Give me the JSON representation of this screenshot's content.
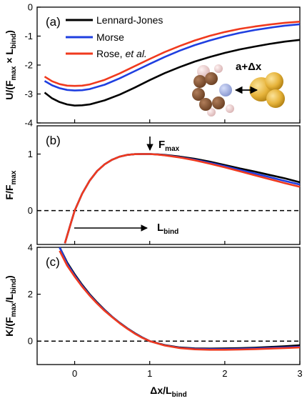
{
  "chart_data": {
    "type": "line",
    "xlabel": {
      "main": "Δx/L",
      "sub": "bind"
    },
    "xlim": [
      -0.5,
      3
    ],
    "xticks": [
      "0",
      "1",
      "2",
      "3"
    ],
    "series_names": [
      "Lennard-Jones",
      "Morse",
      "Rose, "
    ],
    "series_name_italic_suffix": "et al.",
    "colors": {
      "lj": "#000000",
      "morse": "#1f3fe0",
      "rose": "#f03a1e",
      "dash": "#000000"
    },
    "panels": [
      {
        "label": "(a)",
        "ylabel": "U/(F",
        "ylabel_parts": [
          "U/(F",
          "max",
          " × L",
          "bind",
          ")"
        ],
        "ylim": [
          -4,
          0
        ],
        "yticks": [
          "-4",
          "-3",
          "-2",
          "-1",
          "0"
        ],
        "inset_label": "a+Δx",
        "series": [
          {
            "name": "Lennard-Jones",
            "x": [
              -0.4,
              -0.3,
              -0.2,
              -0.1,
              0,
              0.1,
              0.2,
              0.4,
              0.6,
              0.8,
              1.0,
              1.2,
              1.4,
              1.6,
              1.8,
              2.0,
              2.2,
              2.4,
              2.6,
              2.8,
              3.0
            ],
            "y": [
              -2.95,
              -3.15,
              -3.28,
              -3.36,
              -3.4,
              -3.39,
              -3.36,
              -3.22,
              -3.02,
              -2.78,
              -2.52,
              -2.28,
              -2.07,
              -1.88,
              -1.72,
              -1.58,
              -1.46,
              -1.36,
              -1.27,
              -1.19,
              -1.13
            ]
          },
          {
            "name": "Morse",
            "x": [
              -0.4,
              -0.3,
              -0.2,
              -0.1,
              0,
              0.1,
              0.2,
              0.4,
              0.6,
              0.8,
              1.0,
              1.2,
              1.4,
              1.6,
              1.8,
              2.0,
              2.2,
              2.4,
              2.6,
              2.8,
              3.0
            ],
            "y": [
              -2.55,
              -2.7,
              -2.8,
              -2.86,
              -2.88,
              -2.87,
              -2.83,
              -2.68,
              -2.46,
              -2.21,
              -1.96,
              -1.72,
              -1.5,
              -1.31,
              -1.15,
              -1.01,
              -0.89,
              -0.79,
              -0.71,
              -0.64,
              -0.59
            ]
          },
          {
            "name": "Rose, et al.",
            "x": [
              -0.4,
              -0.3,
              -0.2,
              -0.1,
              0,
              0.1,
              0.2,
              0.4,
              0.6,
              0.8,
              1.0,
              1.2,
              1.4,
              1.6,
              1.8,
              2.0,
              2.2,
              2.4,
              2.6,
              2.8,
              3.0
            ],
            "y": [
              -2.4,
              -2.56,
              -2.66,
              -2.71,
              -2.72,
              -2.71,
              -2.67,
              -2.51,
              -2.29,
              -2.04,
              -1.79,
              -1.55,
              -1.34,
              -1.15,
              -0.99,
              -0.86,
              -0.75,
              -0.67,
              -0.6,
              -0.54,
              -0.5
            ]
          }
        ]
      },
      {
        "label": "(b)",
        "ylabel_parts": [
          "F/F",
          "max"
        ],
        "ylim": [
          -0.6,
          1.5
        ],
        "yticks": [
          "0",
          "1"
        ],
        "ytick_values": [
          0,
          1
        ],
        "zero_line": true,
        "annotations": {
          "fmax": {
            "main": "F",
            "sub": "max"
          },
          "lbind": {
            "main": "L",
            "sub": "bind"
          }
        },
        "series": [
          {
            "name": "Lennard-Jones",
            "x": [
              -0.13,
              -0.05,
              0,
              0.1,
              0.2,
              0.3,
              0.4,
              0.5,
              0.6,
              0.7,
              0.8,
              0.9,
              1.0,
              1.1,
              1.2,
              1.4,
              1.6,
              1.8,
              2.0,
              2.2,
              2.4,
              2.6,
              2.8,
              3.0
            ],
            "y": [
              -0.58,
              -0.22,
              0.0,
              0.3,
              0.53,
              0.7,
              0.82,
              0.9,
              0.955,
              0.985,
              0.998,
              1.0,
              1.0,
              0.995,
              0.985,
              0.955,
              0.915,
              0.865,
              0.805,
              0.745,
              0.69,
              0.63,
              0.57,
              0.5
            ]
          },
          {
            "name": "Morse",
            "x": [
              -0.13,
              -0.05,
              0,
              0.1,
              0.2,
              0.3,
              0.4,
              0.5,
              0.6,
              0.7,
              0.8,
              0.9,
              1.0,
              1.1,
              1.2,
              1.4,
              1.6,
              1.8,
              2.0,
              2.2,
              2.4,
              2.6,
              2.8,
              3.0
            ],
            "y": [
              -0.58,
              -0.22,
              0.0,
              0.3,
              0.53,
              0.7,
              0.82,
              0.9,
              0.955,
              0.985,
              0.998,
              1.0,
              1.0,
              0.993,
              0.98,
              0.945,
              0.9,
              0.845,
              0.785,
              0.72,
              0.655,
              0.59,
              0.525,
              0.46
            ]
          },
          {
            "name": "Rose, et al.",
            "x": [
              -0.13,
              -0.05,
              0,
              0.1,
              0.2,
              0.3,
              0.4,
              0.5,
              0.6,
              0.7,
              0.8,
              0.9,
              1.0,
              1.1,
              1.2,
              1.4,
              1.6,
              1.8,
              2.0,
              2.2,
              2.4,
              2.6,
              2.8,
              3.0
            ],
            "y": [
              -0.58,
              -0.22,
              0.0,
              0.3,
              0.53,
              0.7,
              0.82,
              0.9,
              0.955,
              0.985,
              0.998,
              1.0,
              1.0,
              0.992,
              0.978,
              0.94,
              0.89,
              0.83,
              0.765,
              0.695,
              0.625,
              0.555,
              0.485,
              0.42
            ]
          }
        ]
      },
      {
        "label": "(c)",
        "ylabel_parts": [
          "K/(F",
          "max",
          "/L",
          "bind",
          ")"
        ],
        "ylim": [
          -1,
          4
        ],
        "yticks": [
          "0",
          "2",
          "4"
        ],
        "ytick_values": [
          0,
          2,
          4
        ],
        "zero_line": true,
        "series": [
          {
            "name": "Lennard-Jones",
            "x": [
              -0.2,
              -0.1,
              0,
              0.1,
              0.2,
              0.3,
              0.4,
              0.5,
              0.6,
              0.7,
              0.8,
              0.9,
              1.0,
              1.2,
              1.4,
              1.6,
              1.8,
              2.0,
              2.2,
              2.4,
              2.6,
              2.8,
              3.0
            ],
            "y": [
              4.0,
              3.35,
              2.85,
              2.4,
              2.0,
              1.65,
              1.33,
              1.04,
              0.78,
              0.55,
              0.34,
              0.16,
              0.0,
              -0.17,
              -0.27,
              -0.31,
              -0.32,
              -0.31,
              -0.3,
              -0.28,
              -0.25,
              -0.22,
              -0.18
            ]
          },
          {
            "name": "Morse",
            "x": [
              -0.2,
              -0.1,
              0,
              0.1,
              0.2,
              0.3,
              0.4,
              0.5,
              0.6,
              0.7,
              0.8,
              0.9,
              1.0,
              1.2,
              1.4,
              1.6,
              1.8,
              2.0,
              2.2,
              2.4,
              2.6,
              2.8,
              3.0
            ],
            "y": [
              4.0,
              3.3,
              2.8,
              2.36,
              1.97,
              1.62,
              1.31,
              1.03,
              0.77,
              0.54,
              0.33,
              0.15,
              0.0,
              -0.18,
              -0.29,
              -0.33,
              -0.34,
              -0.34,
              -0.33,
              -0.31,
              -0.29,
              -0.27,
              -0.24
            ]
          },
          {
            "name": "Rose, et al.",
            "x": [
              -0.2,
              -0.1,
              0,
              0.1,
              0.2,
              0.3,
              0.4,
              0.5,
              0.6,
              0.7,
              0.8,
              0.9,
              1.0,
              1.2,
              1.4,
              1.6,
              1.8,
              2.0,
              2.2,
              2.4,
              2.6,
              2.8,
              3.0
            ],
            "y": [
              3.85,
              3.22,
              2.75,
              2.32,
              1.94,
              1.6,
              1.29,
              1.02,
              0.76,
              0.53,
              0.32,
              0.14,
              0.0,
              -0.19,
              -0.3,
              -0.35,
              -0.37,
              -0.37,
              -0.36,
              -0.34,
              -0.32,
              -0.3,
              -0.27
            ]
          }
        ]
      }
    ],
    "grid": false,
    "legend_placement": "top-left of panel (a)"
  }
}
